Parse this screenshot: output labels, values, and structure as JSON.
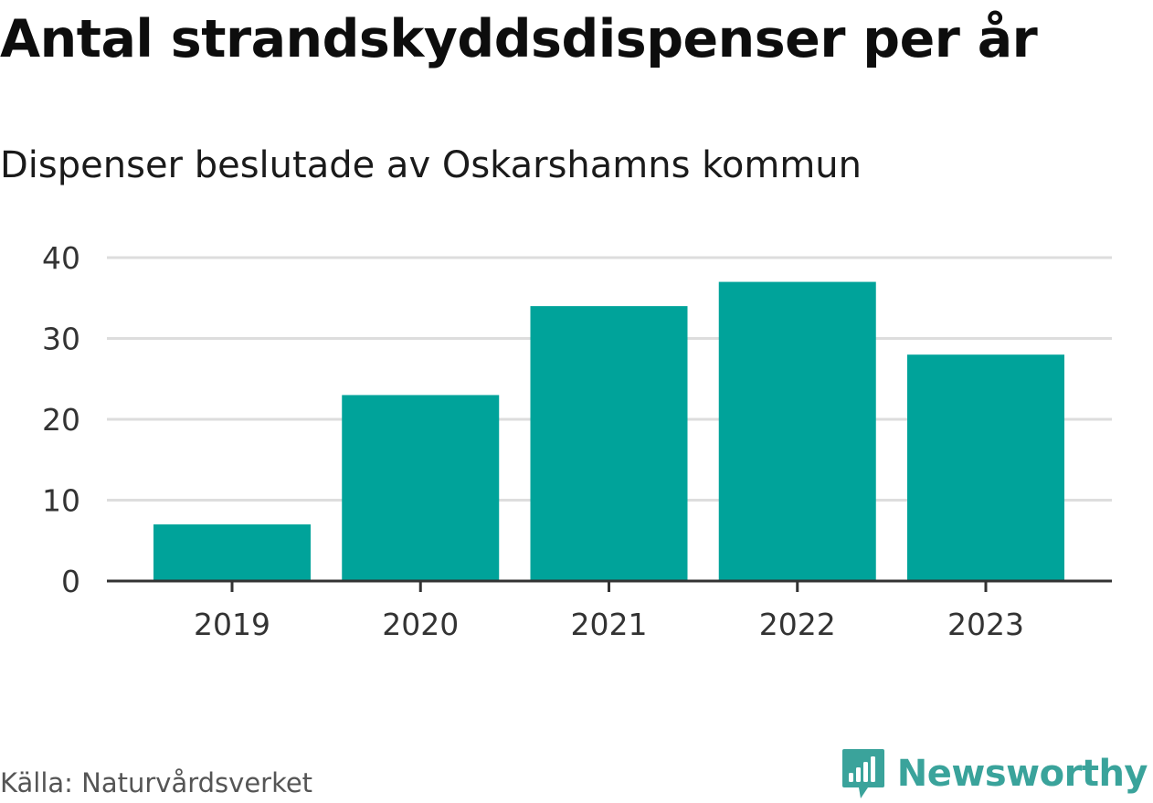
{
  "chart_data": {
    "type": "bar",
    "title": "Antal strandskyddsdispenser per år",
    "subtitle": "Dispenser beslutade av Oskarshamns kommun",
    "categories": [
      "2019",
      "2020",
      "2021",
      "2022",
      "2023"
    ],
    "values": [
      7,
      23,
      34,
      37,
      28
    ],
    "ylim": [
      0,
      40
    ],
    "yticks": [
      "0",
      "10",
      "20",
      "30",
      "40"
    ],
    "xlabel": "",
    "ylabel": "",
    "grid": true,
    "bar_color": "#00a39a"
  },
  "footer": {
    "source": "Källa: Naturvårdsverket",
    "brand": "Newsworthy",
    "brand_icon": "bar-chart-badge-icon",
    "brand_color": "#3aa39b"
  }
}
